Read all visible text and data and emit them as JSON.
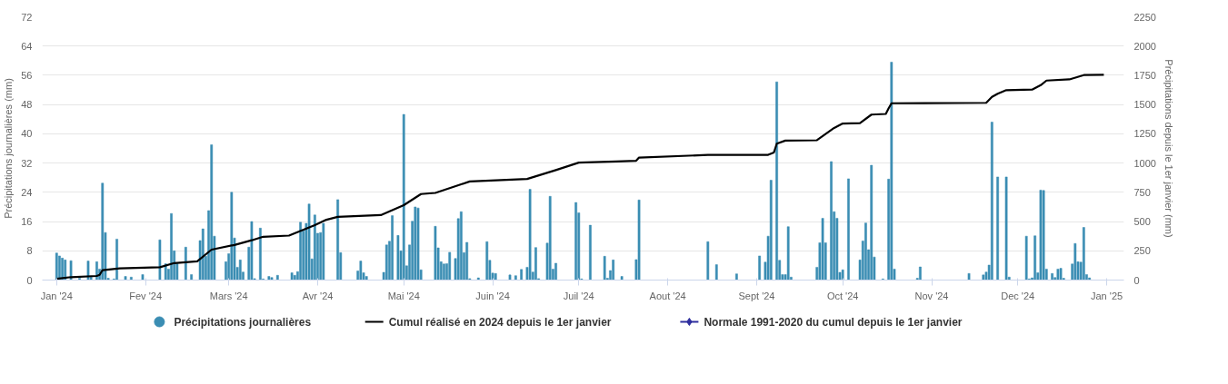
{
  "chart_data": {
    "type": "bar",
    "ylabel": "Précipitations journalières (mm)",
    "y2label": "Précipitations depuis le 1er janvier (mm)",
    "xlim": [
      "2023-12-27",
      "2025-01-07"
    ],
    "xticks": [
      {
        "value": "2024-01-01",
        "label": "Jan '24"
      },
      {
        "value": "2024-02-01",
        "label": "Fev '24"
      },
      {
        "value": "2024-03-01",
        "label": "Mars '24"
      },
      {
        "value": "2024-04-01",
        "label": "Avr '24"
      },
      {
        "value": "2024-05-01",
        "label": "Mai '24"
      },
      {
        "value": "2024-06-01",
        "label": "Juin '24"
      },
      {
        "value": "2024-07-01",
        "label": "Juil '24"
      },
      {
        "value": "2024-08-01",
        "label": "Aout '24"
      },
      {
        "value": "2024-09-01",
        "label": "Sept '24"
      },
      {
        "value": "2024-10-01",
        "label": "Oct '24"
      },
      {
        "value": "2024-11-01",
        "label": "Nov '24"
      },
      {
        "value": "2024-12-01",
        "label": "Dec '24"
      },
      {
        "value": "2025-01-01",
        "label": "Jan '25"
      }
    ],
    "ylim": [
      0,
      72
    ],
    "yticks": [
      0,
      8,
      16,
      24,
      32,
      40,
      48,
      56,
      64,
      72
    ],
    "y2lim": [
      0,
      2250
    ],
    "y2ticks": [
      0,
      250,
      500,
      750,
      1000,
      1250,
      1500,
      1750,
      2000,
      2250
    ],
    "grid": "y",
    "legend": "bottom",
    "series": [
      {
        "name": "Précipitations journalières",
        "color": "#3a8db3",
        "x": [
          "2024-01-01",
          "2024-01-02",
          "2024-01-03",
          "2024-01-04",
          "2024-01-06",
          "2024-01-09",
          "2024-01-12",
          "2024-01-13",
          "2024-01-15",
          "2024-01-16",
          "2024-01-17",
          "2024-01-18",
          "2024-01-19",
          "2024-01-21",
          "2024-01-22",
          "2024-01-25",
          "2024-01-27",
          "2024-01-31",
          "2024-02-06",
          "2024-02-08",
          "2024-02-09",
          "2024-02-10",
          "2024-02-11",
          "2024-02-12",
          "2024-02-15",
          "2024-02-17",
          "2024-02-20",
          "2024-02-21",
          "2024-02-22",
          "2024-02-23",
          "2024-02-24",
          "2024-02-25",
          "2024-02-29",
          "2024-03-01",
          "2024-03-02",
          "2024-03-03",
          "2024-03-04",
          "2024-03-05",
          "2024-03-06",
          "2024-03-08",
          "2024-03-09",
          "2024-03-10",
          "2024-03-12",
          "2024-03-13",
          "2024-03-15",
          "2024-03-16",
          "2024-03-18",
          "2024-03-23",
          "2024-03-24",
          "2024-03-25",
          "2024-03-26",
          "2024-03-27",
          "2024-03-28",
          "2024-03-29",
          "2024-03-30",
          "2024-03-31",
          "2024-04-01",
          "2024-04-02",
          "2024-04-03",
          "2024-04-08",
          "2024-04-09",
          "2024-04-15",
          "2024-04-16",
          "2024-04-17",
          "2024-04-18",
          "2024-04-24",
          "2024-04-25",
          "2024-04-26",
          "2024-04-27",
          "2024-04-29",
          "2024-04-30",
          "2024-05-01",
          "2024-05-02",
          "2024-05-03",
          "2024-05-04",
          "2024-05-05",
          "2024-05-06",
          "2024-05-07",
          "2024-05-12",
          "2024-05-13",
          "2024-05-14",
          "2024-05-15",
          "2024-05-16",
          "2024-05-17",
          "2024-05-19",
          "2024-05-20",
          "2024-05-21",
          "2024-05-22",
          "2024-05-23",
          "2024-05-24",
          "2024-05-27",
          "2024-05-30",
          "2024-05-31",
          "2024-06-01",
          "2024-06-02",
          "2024-06-07",
          "2024-06-09",
          "2024-06-11",
          "2024-06-13",
          "2024-06-14",
          "2024-06-15",
          "2024-06-16",
          "2024-06-17",
          "2024-06-20",
          "2024-06-21",
          "2024-06-22",
          "2024-06-23",
          "2024-06-30",
          "2024-07-01",
          "2024-07-02",
          "2024-07-05",
          "2024-07-10",
          "2024-07-11",
          "2024-07-12",
          "2024-07-13",
          "2024-07-16",
          "2024-07-21",
          "2024-07-22",
          "2024-08-15",
          "2024-08-18",
          "2024-08-25",
          "2024-09-02",
          "2024-09-04",
          "2024-09-05",
          "2024-09-06",
          "2024-09-08",
          "2024-09-09",
          "2024-09-10",
          "2024-09-11",
          "2024-09-12",
          "2024-09-13",
          "2024-09-22",
          "2024-09-23",
          "2024-09-24",
          "2024-09-25",
          "2024-09-27",
          "2024-09-28",
          "2024-09-29",
          "2024-09-30",
          "2024-10-01",
          "2024-10-03",
          "2024-10-07",
          "2024-10-08",
          "2024-10-09",
          "2024-10-10",
          "2024-10-11",
          "2024-10-12",
          "2024-10-15",
          "2024-10-17",
          "2024-10-18",
          "2024-10-19",
          "2024-10-27",
          "2024-10-28",
          "2024-11-14",
          "2024-11-19",
          "2024-11-20",
          "2024-11-21",
          "2024-11-22",
          "2024-11-24",
          "2024-11-27",
          "2024-11-28",
          "2024-12-04",
          "2024-12-05",
          "2024-12-06",
          "2024-12-07",
          "2024-12-08",
          "2024-12-09",
          "2024-12-10",
          "2024-12-11",
          "2024-12-13",
          "2024-12-14",
          "2024-12-15",
          "2024-12-16",
          "2024-12-17",
          "2024-12-20",
          "2024-12-21",
          "2024-12-22",
          "2024-12-23",
          "2024-12-24",
          "2024-12-25",
          "2024-12-26"
        ],
        "values": [
          7.4,
          6.6,
          6.0,
          5.5,
          5.3,
          0.5,
          5.2,
          0.8,
          5.0,
          3.0,
          26.5,
          13.0,
          0.5,
          0.3,
          11.2,
          1.0,
          0.8,
          1.5,
          11.0,
          4.5,
          3.0,
          18.2,
          8.0,
          4.5,
          9.0,
          1.5,
          10.8,
          14.0,
          6.5,
          19.0,
          37.0,
          12.0,
          5.0,
          7.2,
          24.0,
          11.5,
          3.5,
          5.5,
          2.2,
          9.0,
          16.0,
          0.4,
          14.2,
          0.3,
          1.0,
          0.7,
          1.3,
          2.0,
          1.3,
          2.3,
          15.8,
          13.5,
          15.5,
          20.8,
          5.8,
          17.8,
          12.8,
          13.0,
          15.5,
          22.0,
          7.5,
          2.5,
          5.2,
          2.0,
          1.0,
          2.1,
          9.6,
          10.6,
          17.6,
          12.2,
          8.0,
          45.3,
          3.9,
          9.6,
          16.1,
          20.0,
          19.7,
          2.8,
          14.7,
          8.8,
          5.0,
          4.4,
          4.5,
          7.6,
          5.9,
          16.8,
          18.7,
          7.5,
          10.3,
          0.4,
          0.6,
          10.5,
          5.4,
          1.9,
          1.8,
          1.4,
          1.2,
          2.9,
          3.5,
          24.8,
          2.2,
          8.9,
          0.4,
          10.1,
          22.9,
          3.0,
          4.6,
          21.2,
          18.4,
          0.3,
          15.0,
          6.5,
          0.5,
          2.6,
          5.5,
          1.0,
          5.6,
          21.9,
          10.5,
          4.2,
          1.7,
          6.6,
          4.9,
          12.0,
          27.3,
          54.2,
          5.4,
          1.5,
          1.5,
          14.6,
          0.8,
          3.5,
          10.2,
          16.9,
          10.2,
          32.4,
          18.7,
          16.9,
          2.1,
          2.8,
          27.7,
          5.5,
          10.7,
          15.6,
          8.3,
          31.4,
          6.3,
          0.3,
          27.6,
          59.6,
          3.0,
          0.5,
          3.6,
          1.8,
          1.4,
          2.2,
          4.1,
          43.2,
          28.2,
          28.2,
          0.8,
          12.0,
          0.3,
          0.6,
          12.1,
          2.0,
          24.6,
          24.5,
          3.0,
          1.8,
          0.7,
          3.0,
          3.2,
          0.5,
          4.4,
          10.0,
          5.0,
          4.9,
          14.4,
          1.5,
          0.6
        ]
      },
      {
        "name": "Cumul réalisé en 2024 depuis le 1er janvier",
        "type": "line",
        "axis": "y2",
        "color": "#000000",
        "x": [
          "2024-01-01",
          "2024-01-06",
          "2024-01-15",
          "2024-01-16",
          "2024-01-17",
          "2024-01-23",
          "2024-02-06",
          "2024-02-11",
          "2024-02-19",
          "2024-02-24",
          "2024-03-03",
          "2024-03-09",
          "2024-03-13",
          "2024-03-22",
          "2024-03-31",
          "2024-04-04",
          "2024-04-08",
          "2024-04-23",
          "2024-05-01",
          "2024-05-07",
          "2024-05-12",
          "2024-05-24",
          "2024-06-13",
          "2024-06-23",
          "2024-07-01",
          "2024-07-14",
          "2024-07-21",
          "2024-07-22",
          "2024-08-15",
          "2024-09-05",
          "2024-09-07",
          "2024-09-08",
          "2024-09-11",
          "2024-09-22",
          "2024-09-28",
          "2024-10-01",
          "2024-10-07",
          "2024-10-11",
          "2024-10-16",
          "2024-10-17",
          "2024-10-18",
          "2024-11-20",
          "2024-11-22",
          "2024-11-24",
          "2024-11-27",
          "2024-12-06",
          "2024-12-09",
          "2024-12-11",
          "2024-12-19",
          "2024-12-24",
          "2024-12-31"
        ],
        "values": [
          10,
          25,
          35,
          45,
          85,
          100,
          110,
          145,
          160,
          260,
          300,
          340,
          370,
          380,
          470,
          515,
          540,
          555,
          640,
          735,
          745,
          843,
          864,
          940,
          1004,
          1013,
          1020,
          1047,
          1069,
          1070,
          1090,
          1166,
          1192,
          1195,
          1300,
          1338,
          1342,
          1414,
          1420,
          1468,
          1511,
          1515,
          1565,
          1593,
          1623,
          1628,
          1666,
          1705,
          1715,
          1752,
          1755
        ]
      },
      {
        "name": "Normale 1991-2020 du cumul depuis le 1er janvier",
        "type": "line",
        "axis": "y2",
        "color": "#2e2e9e",
        "marker": "diamond"
      }
    ]
  }
}
